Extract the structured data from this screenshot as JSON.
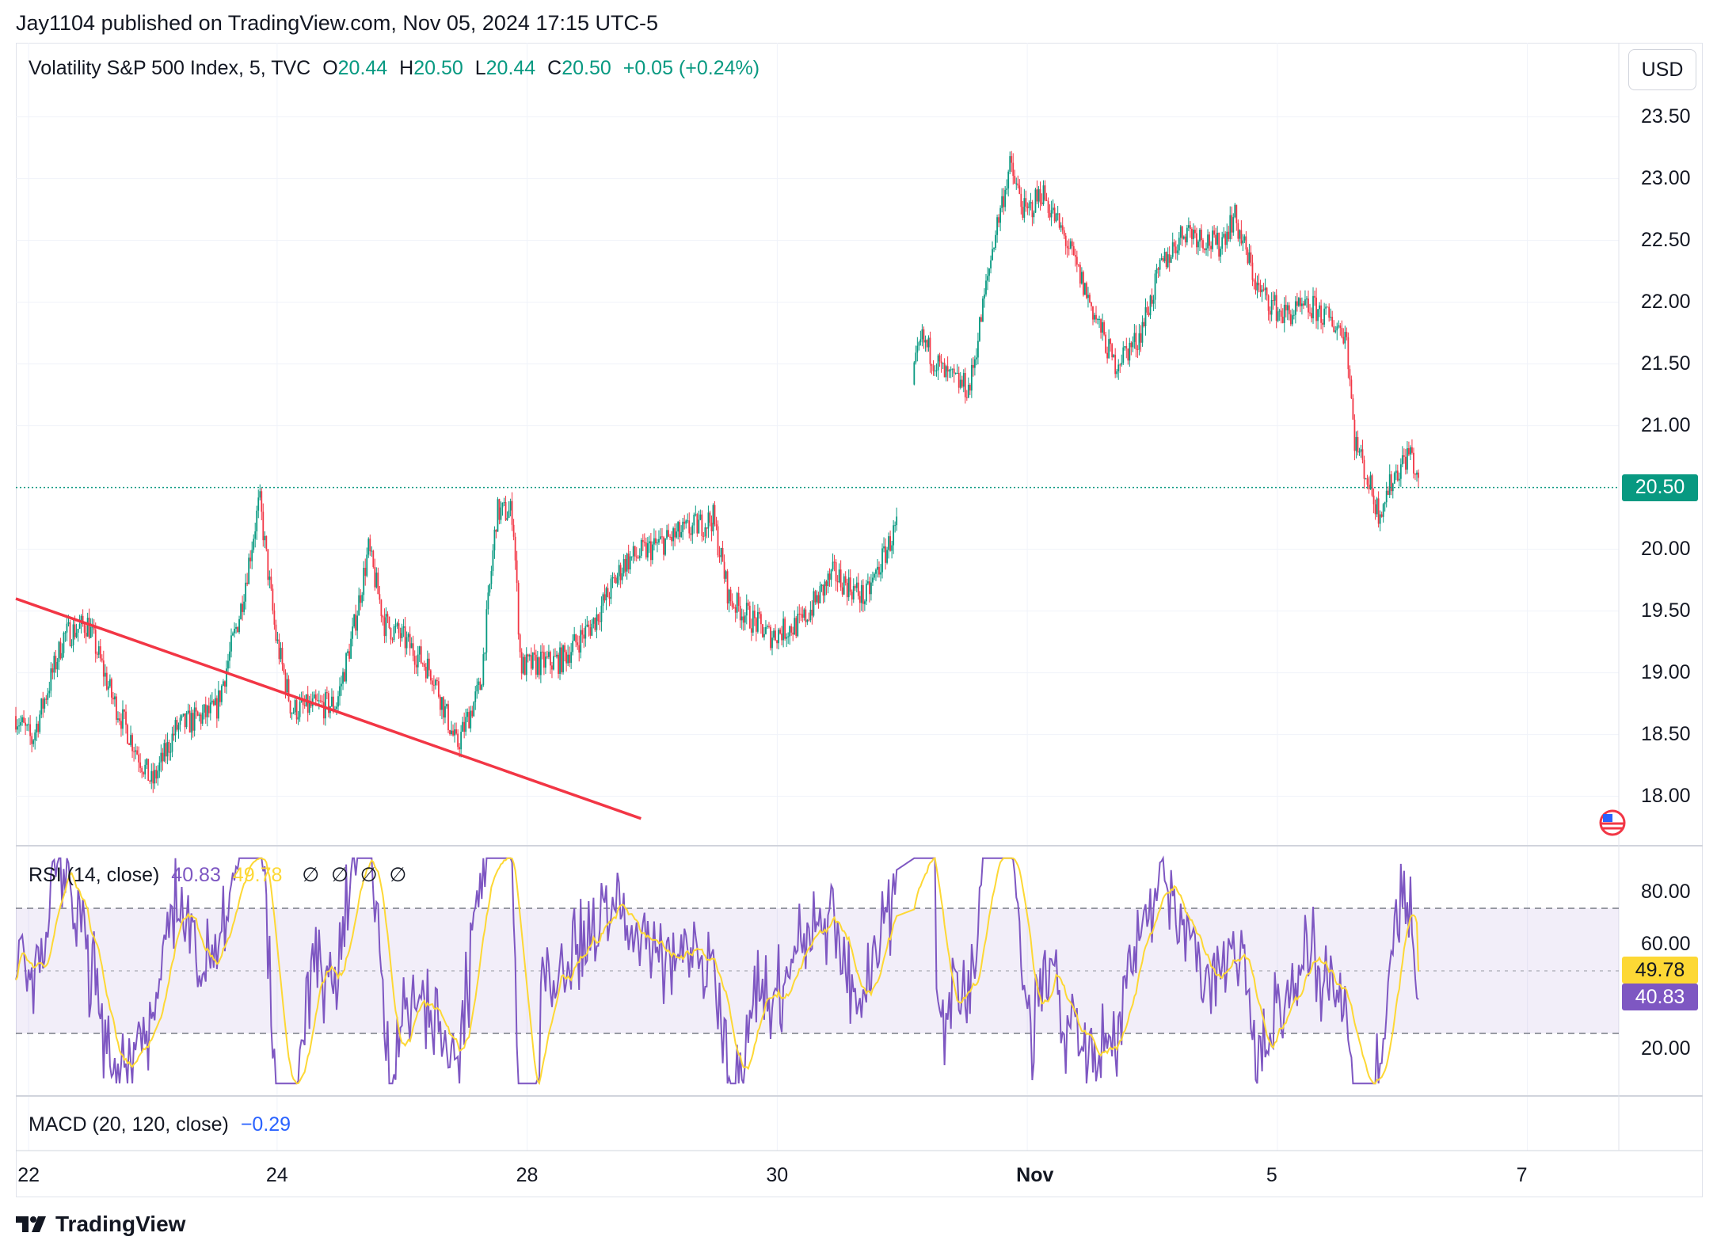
{
  "header": {
    "publish_text": "Jay1104 published on TradingView.com, Nov 05, 2024 17:15 UTC-5"
  },
  "main_legend": {
    "symbol": "Volatility S&P 500 Index, 5, TVC",
    "o_label": "O",
    "o_value": "20.44",
    "h_label": "H",
    "h_value": "20.50",
    "l_label": "L",
    "l_value": "20.44",
    "c_label": "C",
    "c_value": "20.50",
    "change": "+0.05 (+0.24%)"
  },
  "currency_button": "USD",
  "price_axis_labels": [
    "23.50",
    "23.00",
    "22.50",
    "22.00",
    "21.50",
    "21.00",
    "20.00",
    "19.50",
    "19.00",
    "18.50",
    "18.00"
  ],
  "last_price_tag": "20.50",
  "rsi": {
    "legend_title": "RSI (14, close)",
    "rsi_value": "40.83",
    "ma_value": "49.78",
    "empty_values": [
      "∅",
      "∅",
      "∅",
      "∅"
    ],
    "axis_labels": [
      "80.00",
      "60.00",
      "20.00"
    ],
    "rsi_tag": "40.83",
    "ma_tag": "49.78"
  },
  "macd": {
    "legend_title": "MACD (20, 120, close)",
    "value": "−0.29"
  },
  "time_axis_labels": [
    "22",
    "24",
    "28",
    "30",
    "Nov",
    "5",
    "7"
  ],
  "footer": {
    "brand": "TradingView"
  },
  "colors": {
    "up": "#089981",
    "down": "#f23645",
    "trendline": "#f23645",
    "rsi_line": "#7e57c2",
    "rsi_ma": "#fdd835",
    "rsi_band": "#7e57c2",
    "macd_value": "#2962ff"
  },
  "chart_data": {
    "type": "candlestick",
    "interval": "5",
    "y_range": [
      17.6,
      24.1
    ],
    "x_ticks": [
      "22",
      "24",
      "28",
      "30",
      "Nov",
      "5",
      "7"
    ],
    "last_price": 20.5,
    "anchor_path": [
      [
        0,
        18.65
      ],
      [
        0.01,
        18.45
      ],
      [
        0.03,
        19.3
      ],
      [
        0.045,
        19.4
      ],
      [
        0.06,
        18.8
      ],
      [
        0.085,
        18.1
      ],
      [
        0.1,
        18.55
      ],
      [
        0.125,
        18.7
      ],
      [
        0.14,
        19.5
      ],
      [
        0.152,
        20.4
      ],
      [
        0.162,
        19.3
      ],
      [
        0.172,
        18.7
      ],
      [
        0.2,
        18.75
      ],
      [
        0.21,
        19.3
      ],
      [
        0.22,
        20.0
      ],
      [
        0.23,
        19.4
      ],
      [
        0.24,
        19.3
      ],
      [
        0.26,
        19.0
      ],
      [
        0.275,
        18.4
      ],
      [
        0.29,
        18.9
      ],
      [
        0.3,
        20.3
      ],
      [
        0.31,
        20.3
      ],
      [
        0.315,
        19.05
      ],
      [
        0.34,
        19.1
      ],
      [
        0.36,
        19.4
      ],
      [
        0.38,
        19.9
      ],
      [
        0.41,
        20.1
      ],
      [
        0.435,
        20.25
      ],
      [
        0.445,
        19.6
      ],
      [
        0.47,
        19.3
      ],
      [
        0.49,
        19.4
      ],
      [
        0.51,
        19.8
      ],
      [
        0.53,
        19.6
      ],
      [
        0.55,
        20.2
      ],
      [
        0.56,
        21.4
      ],
      [
        0.565,
        21.7
      ],
      [
        0.58,
        21.4
      ],
      [
        0.595,
        21.3
      ],
      [
        0.61,
        22.5
      ],
      [
        0.62,
        23.1
      ],
      [
        0.63,
        22.7
      ],
      [
        0.64,
        22.9
      ],
      [
        0.655,
        22.5
      ],
      [
        0.67,
        22.0
      ],
      [
        0.685,
        21.5
      ],
      [
        0.7,
        21.7
      ],
      [
        0.715,
        22.3
      ],
      [
        0.73,
        22.6
      ],
      [
        0.75,
        22.45
      ],
      [
        0.76,
        22.7
      ],
      [
        0.775,
        22.1
      ],
      [
        0.79,
        21.9
      ],
      [
        0.81,
        21.95
      ],
      [
        0.83,
        21.75
      ],
      [
        0.835,
        20.9
      ],
      [
        0.85,
        20.3
      ],
      [
        0.86,
        20.6
      ],
      [
        0.87,
        20.8
      ],
      [
        0.875,
        20.5
      ]
    ],
    "trendline": {
      "start": [
        0.0,
        19.6
      ],
      "end": [
        0.39,
        17.82
      ]
    },
    "rsi_pane": {
      "y_range": [
        10,
        90
      ],
      "overbought": 70,
      "middle": 50,
      "oversold": 30,
      "last_rsi": 40.83,
      "last_ma": 49.78
    }
  }
}
